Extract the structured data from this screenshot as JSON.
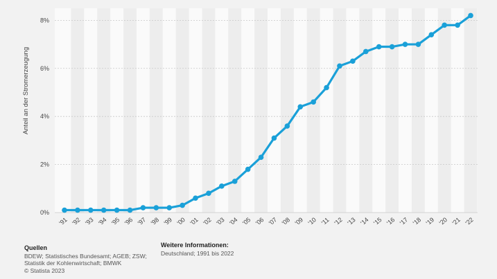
{
  "chart_data": {
    "type": "line",
    "title": "",
    "xlabel": "",
    "ylabel": "Anteil an der Stromerzeugung",
    "ylim": [
      0,
      8.5
    ],
    "yticks": [
      0,
      2,
      4,
      6,
      8
    ],
    "ytick_labels": [
      "0%",
      "2%",
      "4%",
      "6%",
      "8%"
    ],
    "categories": [
      "'91",
      "'92",
      "'93",
      "'94",
      "'95",
      "'96",
      "'97",
      "'98",
      "'99",
      "'00",
      "'01",
      "'02",
      "'03",
      "'04",
      "'05",
      "'06",
      "'07",
      "'08",
      "'09",
      "'10",
      "'11",
      "'12",
      "'13",
      "'14",
      "'15",
      "'16",
      "'17",
      "'18",
      "'19",
      "'20",
      "'21",
      "'22"
    ],
    "series": [
      {
        "values": [
          0.1,
          0.1,
          0.1,
          0.1,
          0.1,
          0.1,
          0.2,
          0.2,
          0.2,
          0.3,
          0.6,
          0.8,
          1.1,
          1.3,
          1.8,
          2.3,
          3.1,
          3.6,
          4.4,
          4.6,
          5.2,
          6.1,
          6.3,
          6.7,
          6.9,
          6.9,
          7.0,
          7.0,
          7.4,
          7.8,
          7.8,
          8.2
        ],
        "color": "#1aa0d8"
      }
    ],
    "grid": true,
    "alternating_column_shading": true,
    "legend": "none"
  },
  "footer": {
    "sources_heading": "Quellen",
    "sources_line1": "BDEW; Statistisches Bundesamt; AGEB; ZSW;",
    "sources_line2": "Statistik der Kohlenwirtschaft; BMWK",
    "copyright": "© Statista 2023",
    "info_heading": "Weitere Informationen:",
    "info_text": "Deutschland; 1991 bis 2022"
  },
  "colors": {
    "background": "#f2f2f2",
    "plot_band_light": "#fafafa",
    "plot_band_dark": "#ededed",
    "gridline": "#c8c8c8",
    "line": "#1aa0d8"
  }
}
